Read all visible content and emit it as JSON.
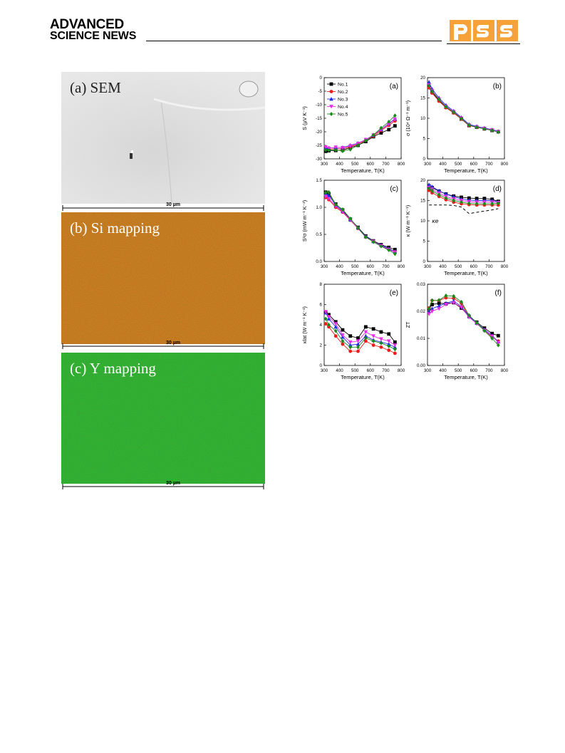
{
  "header": {
    "logo_line1": "ADVANCED",
    "logo_line2": "SCIENCE NEWS",
    "journal_logo": "pss",
    "journal_colors": [
      "#f7a239",
      "#ffffff"
    ]
  },
  "micrographs": [
    {
      "label": "(a) SEM",
      "scale": "30 µm",
      "tone": "#e4e4e4"
    },
    {
      "label": "(b) Si mapping",
      "scale": "30 µm",
      "tone": "#cf7a1e"
    },
    {
      "label": "(c) Y mapping",
      "scale": "30 µm",
      "tone": "#27b027"
    }
  ],
  "legend": [
    "No.1",
    "No.2",
    "No.3",
    "No.4",
    "No.5"
  ],
  "series_colors": [
    "#000000",
    "#ee1c1c",
    "#1f2ee8",
    "#e52ee5",
    "#1b8a1b"
  ],
  "kappa_e_label": "κe",
  "chart_data": [
    {
      "type": "line",
      "panel": "(a)",
      "x": [
        310,
        330,
        375,
        420,
        470,
        520,
        570,
        620,
        670,
        720,
        760
      ],
      "xlabel": "Temperature, T(K)",
      "ylabel": "S (µV K⁻¹)",
      "xlim": [
        300,
        800
      ],
      "ylim": [
        -30,
        0
      ],
      "xticks": [
        300,
        400,
        500,
        600,
        700,
        800
      ],
      "yticks": [
        -30,
        -25,
        -20,
        -15,
        -10,
        -5,
        0
      ],
      "series": [
        {
          "name": "No.1",
          "values": [
            -27.2,
            -27.0,
            -26.9,
            -26.8,
            -25.8,
            -25.0,
            -23.6,
            -21.8,
            -20.4,
            -19.2,
            -17.8
          ]
        },
        {
          "name": "No.2",
          "values": [
            -26.0,
            -26.5,
            -26.2,
            -26.3,
            -25.5,
            -24.6,
            -23.1,
            -21.6,
            -19.5,
            -17.6,
            -16.0
          ]
        },
        {
          "name": "No.3",
          "values": [
            -25.8,
            -26.0,
            -25.8,
            -25.8,
            -25.0,
            -24.2,
            -22.9,
            -21.2,
            -19.1,
            -17.0,
            -15.2
          ]
        },
        {
          "name": "No.4",
          "values": [
            -25.6,
            -26.1,
            -25.7,
            -25.9,
            -25.2,
            -24.3,
            -22.9,
            -21.2,
            -19.2,
            -17.2,
            -15.4
          ]
        },
        {
          "name": "No.5",
          "values": [
            -26.7,
            -26.8,
            -26.7,
            -27.1,
            -26.5,
            -25.0,
            -23.3,
            -21.2,
            -18.6,
            -16.3,
            -14.0
          ]
        }
      ]
    },
    {
      "type": "line",
      "panel": "(b)",
      "x": [
        310,
        330,
        375,
        420,
        470,
        520,
        570,
        620,
        670,
        720,
        760
      ],
      "xlabel": "Temperature, T(K)",
      "ylabel": "σ (10⁴ Ω⁻¹ m⁻¹)",
      "xlim": [
        300,
        800
      ],
      "ylim": [
        0,
        20
      ],
      "xticks": [
        300,
        400,
        500,
        600,
        700,
        800
      ],
      "yticks": [
        0,
        5,
        10,
        15,
        20
      ],
      "series": [
        {
          "name": "No.1",
          "values": [
            17.8,
            16.4,
            14.4,
            12.7,
            11.4,
            9.8,
            8.2,
            7.8,
            7.4,
            7.0,
            6.7
          ]
        },
        {
          "name": "No.2",
          "values": [
            17.5,
            16.2,
            14.2,
            12.6,
            11.3,
            9.8,
            8.2,
            7.8,
            7.4,
            7.0,
            6.7
          ]
        },
        {
          "name": "No.3",
          "values": [
            18.9,
            17.2,
            15.0,
            13.2,
            11.8,
            10.2,
            8.5,
            8.0,
            7.6,
            7.2,
            6.8
          ]
        },
        {
          "name": "No.4",
          "values": [
            18.2,
            16.8,
            14.7,
            12.9,
            11.6,
            10.0,
            8.3,
            7.9,
            7.5,
            7.1,
            6.7
          ]
        },
        {
          "name": "No.5",
          "values": [
            18.0,
            16.6,
            14.6,
            12.8,
            11.5,
            9.9,
            8.3,
            7.8,
            7.4,
            7.0,
            6.6
          ]
        }
      ]
    },
    {
      "type": "line",
      "panel": "(c)",
      "x": [
        310,
        330,
        375,
        420,
        470,
        520,
        570,
        620,
        670,
        720,
        760
      ],
      "xlabel": "Temperature, T(K)",
      "ylabel": "S²σ (mW m⁻¹ K⁻²)",
      "xlim": [
        300,
        800
      ],
      "ylim": [
        0,
        1.5
      ],
      "xticks": [
        300,
        400,
        500,
        600,
        700,
        800
      ],
      "yticks": [
        0.0,
        0.5,
        1.0,
        1.5
      ],
      "series": [
        {
          "name": "No.1",
          "values": [
            1.28,
            1.25,
            1.06,
            0.95,
            0.78,
            0.63,
            0.47,
            0.38,
            0.31,
            0.26,
            0.22
          ]
        },
        {
          "name": "No.2",
          "values": [
            1.18,
            1.14,
            1.0,
            0.91,
            0.76,
            0.61,
            0.45,
            0.37,
            0.29,
            0.23,
            0.18
          ]
        },
        {
          "name": "No.3",
          "values": [
            1.26,
            1.22,
            1.04,
            0.93,
            0.77,
            0.62,
            0.46,
            0.37,
            0.3,
            0.24,
            0.18
          ]
        },
        {
          "name": "No.4",
          "values": [
            1.2,
            1.16,
            1.02,
            0.92,
            0.77,
            0.61,
            0.45,
            0.37,
            0.29,
            0.22,
            0.17
          ]
        },
        {
          "name": "No.5",
          "values": [
            1.27,
            1.28,
            1.05,
            0.96,
            0.79,
            0.62,
            0.45,
            0.36,
            0.28,
            0.21,
            0.14
          ]
        }
      ]
    },
    {
      "type": "line",
      "panel": "(d)",
      "x": [
        310,
        330,
        375,
        420,
        470,
        520,
        570,
        620,
        670,
        720,
        760
      ],
      "xlabel": "Temperature, T(K)",
      "ylabel": "κ (W m⁻¹ K⁻¹)",
      "xlim": [
        300,
        800
      ],
      "ylim": [
        0,
        20
      ],
      "xticks": [
        300,
        400,
        500,
        600,
        700,
        800
      ],
      "yticks": [
        0,
        5,
        10,
        15,
        20
      ],
      "series": [
        {
          "name": "No.1",
          "values": [
            18.6,
            18.2,
            17.3,
            16.6,
            16.1,
            15.8,
            15.6,
            15.5,
            15.5,
            15.3,
            14.8
          ]
        },
        {
          "name": "No.2",
          "values": [
            17.5,
            16.9,
            16.0,
            15.2,
            14.6,
            14.2,
            14.0,
            13.9,
            13.9,
            13.9,
            13.9
          ]
        },
        {
          "name": "No.3",
          "values": [
            18.9,
            18.4,
            17.4,
            16.6,
            15.9,
            15.4,
            15.1,
            15.0,
            15.0,
            15.0,
            14.7
          ]
        },
        {
          "name": "No.4",
          "values": [
            18.2,
            17.8,
            16.8,
            16.0,
            15.4,
            15.0,
            14.7,
            14.6,
            14.6,
            14.6,
            14.5
          ]
        },
        {
          "name": "No.5",
          "values": [
            18.0,
            17.4,
            16.4,
            15.6,
            15.0,
            14.6,
            14.3,
            14.2,
            14.2,
            14.2,
            14.3
          ]
        },
        {
          "name": "κe",
          "values": [
            13.9,
            13.9,
            13.9,
            13.9,
            13.8,
            13.4,
            11.8,
            12.1,
            12.4,
            12.7,
            13.0
          ],
          "dashed": true
        }
      ]
    },
    {
      "type": "line",
      "panel": "(e)",
      "x": [
        310,
        330,
        375,
        420,
        470,
        520,
        570,
        620,
        670,
        720,
        760
      ],
      "xlabel": "Temperature, T(K)",
      "ylabel": "κlat (W m⁻¹ K⁻¹)",
      "xlim": [
        300,
        800
      ],
      "ylim": [
        0,
        8
      ],
      "xticks": [
        300,
        400,
        500,
        600,
        700,
        800
      ],
      "yticks": [
        0,
        2,
        4,
        6,
        8
      ],
      "series": [
        {
          "name": "No.1",
          "values": [
            5.2,
            5.0,
            4.3,
            3.5,
            2.9,
            2.7,
            3.8,
            3.6,
            3.3,
            3.1,
            2.3
          ]
        },
        {
          "name": "No.2",
          "values": [
            4.1,
            3.8,
            2.9,
            2.1,
            1.4,
            1.4,
            2.4,
            2.0,
            1.8,
            1.5,
            1.2
          ]
        },
        {
          "name": "No.3",
          "values": [
            5.2,
            4.6,
            3.8,
            2.8,
            2.0,
            2.1,
            2.9,
            2.5,
            2.3,
            2.1,
            1.8
          ]
        },
        {
          "name": "No.4",
          "values": [
            5.3,
            4.8,
            4.1,
            3.0,
            2.3,
            2.4,
            3.3,
            2.9,
            2.6,
            2.4,
            2.0
          ]
        },
        {
          "name": "No.5",
          "values": [
            4.6,
            4.0,
            3.4,
            2.4,
            1.8,
            1.8,
            2.7,
            2.4,
            2.2,
            1.9,
            1.6
          ]
        }
      ]
    },
    {
      "type": "line",
      "panel": "(f)",
      "x": [
        310,
        330,
        375,
        420,
        470,
        520,
        570,
        620,
        670,
        720,
        760
      ],
      "xlabel": "Temperature, T(K)",
      "ylabel": "ZT",
      "xlim": [
        300,
        800
      ],
      "ylim": [
        0,
        0.03
      ],
      "xticks": [
        300,
        400,
        500,
        600,
        700,
        800
      ],
      "yticks": [
        0.0,
        0.01,
        0.02,
        0.03
      ],
      "series": [
        {
          "name": "No.1",
          "values": [
            0.021,
            0.0225,
            0.023,
            0.0228,
            0.0232,
            0.0212,
            0.0181,
            0.016,
            0.0138,
            0.0118,
            0.011
          ]
        },
        {
          "name": "No.2",
          "values": [
            0.0212,
            0.024,
            0.024,
            0.025,
            0.0248,
            0.023,
            0.018,
            0.0155,
            0.013,
            0.0105,
            0.009
          ]
        },
        {
          "name": "No.3",
          "values": [
            0.02,
            0.021,
            0.022,
            0.023,
            0.0238,
            0.0218,
            0.0182,
            0.0157,
            0.0133,
            0.011,
            0.0088
          ]
        },
        {
          "name": "No.4",
          "values": [
            0.019,
            0.02,
            0.021,
            0.0225,
            0.0232,
            0.0215,
            0.0178,
            0.0155,
            0.013,
            0.0108,
            0.0085
          ]
        },
        {
          "name": "No.5",
          "values": [
            0.021,
            0.024,
            0.0241,
            0.0258,
            0.0256,
            0.0235,
            0.0185,
            0.0158,
            0.0128,
            0.01,
            0.0075
          ]
        }
      ]
    }
  ]
}
